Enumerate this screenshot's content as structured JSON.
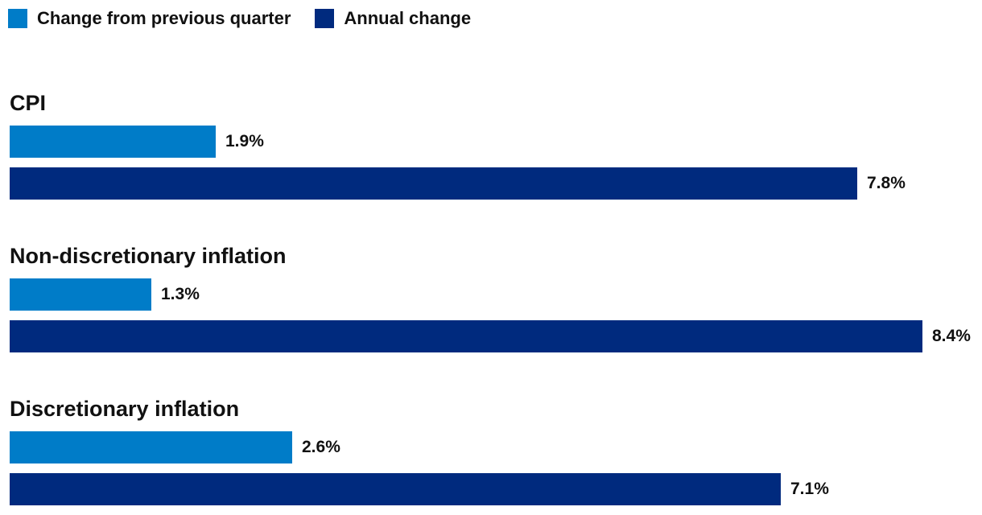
{
  "chart_data": {
    "type": "bar",
    "orientation": "horizontal",
    "title": "",
    "xlabel": "",
    "ylabel": "",
    "xlim": [
      0,
      8.4
    ],
    "legend_position": "top-left",
    "legend": [
      {
        "name": "Change from previous quarter",
        "color": "#007cc8"
      },
      {
        "name": "Annual change",
        "color": "#002a7e"
      }
    ],
    "categories": [
      "CPI",
      "Non-discretionary inflation",
      "Discretionary inflation"
    ],
    "series": [
      {
        "name": "Change from previous quarter",
        "color": "#007cc8",
        "values": [
          1.9,
          1.3,
          2.6
        ],
        "labels": [
          "1.9%",
          "1.3%",
          "2.6%"
        ]
      },
      {
        "name": "Annual change",
        "color": "#002a7e",
        "values": [
          7.8,
          8.4,
          7.1
        ],
        "labels": [
          "7.8%",
          "8.4%",
          "7.1%"
        ]
      }
    ]
  }
}
